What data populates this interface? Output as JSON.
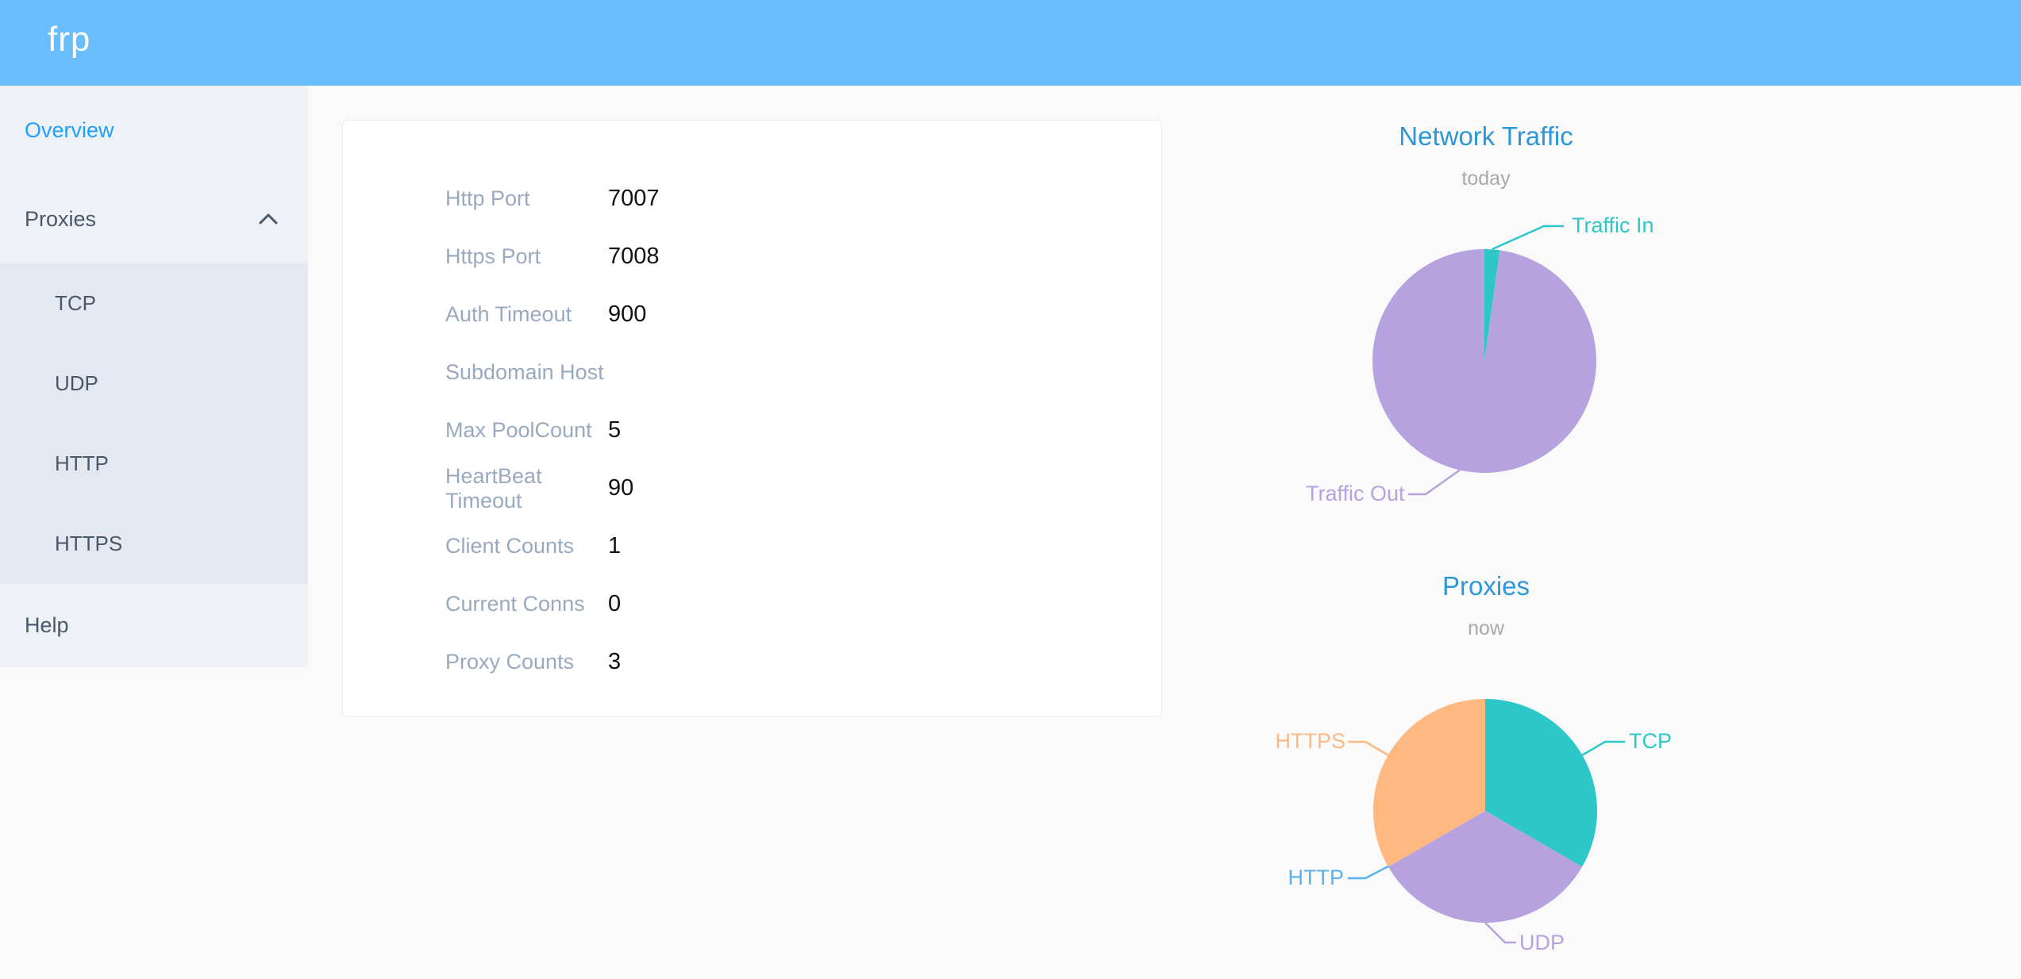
{
  "app": {
    "logo": "frp"
  },
  "sidebar": {
    "overview": "Overview",
    "proxies": "Proxies",
    "proxies_children": [
      "TCP",
      "UDP",
      "HTTP",
      "HTTPS"
    ],
    "help": "Help"
  },
  "server_info": {
    "rows": [
      {
        "label": "Http Port",
        "value": "7007"
      },
      {
        "label": "Https Port",
        "value": "7008"
      },
      {
        "label": "Auth Timeout",
        "value": "900"
      },
      {
        "label": "Subdomain Host",
        "value": ""
      },
      {
        "label": "Max PoolCount",
        "value": "5"
      },
      {
        "label": "HeartBeat Timeout",
        "value": "90"
      },
      {
        "label": "Client Counts",
        "value": "1"
      },
      {
        "label": "Current Conns",
        "value": "0"
      },
      {
        "label": "Proxy Counts",
        "value": "3"
      }
    ]
  },
  "chart_data": [
    {
      "type": "pie",
      "title": "Network Traffic",
      "subtitle": "today",
      "legend_position": "none",
      "labels": "outside-leader-lines",
      "series": [
        {
          "name": "Traffic In",
          "value_percent": 2.2,
          "color": "#2ec7c9"
        },
        {
          "name": "Traffic Out",
          "value_percent": 97.8,
          "color": "#b6a2de"
        }
      ]
    },
    {
      "type": "pie",
      "title": "Proxies",
      "subtitle": "now",
      "legend_position": "none",
      "labels": "outside-leader-lines",
      "series": [
        {
          "name": "TCP",
          "value": 1,
          "color": "#2ec7c9"
        },
        {
          "name": "UDP",
          "value": 1,
          "color": "#b6a2de"
        },
        {
          "name": "HTTP",
          "value": 0,
          "color": "#5ab1ef"
        },
        {
          "name": "HTTPS",
          "value": 1,
          "color": "#ffb980"
        }
      ]
    }
  ],
  "colors": {
    "header_bg": "#6abdfb",
    "accent_active": "#20a0ff",
    "menu_text": "#48576a",
    "sidebar_bg": "#eef1f6",
    "submenu_bg": "#e4e8f1",
    "chart_title": "#2e97d9",
    "chart_subtitle": "#a9a9a9",
    "info_label": "#99a9bf",
    "teal": "#2ec7c9",
    "purple": "#b6a2de",
    "blue": "#5ab1ef",
    "orange": "#ffb980"
  }
}
